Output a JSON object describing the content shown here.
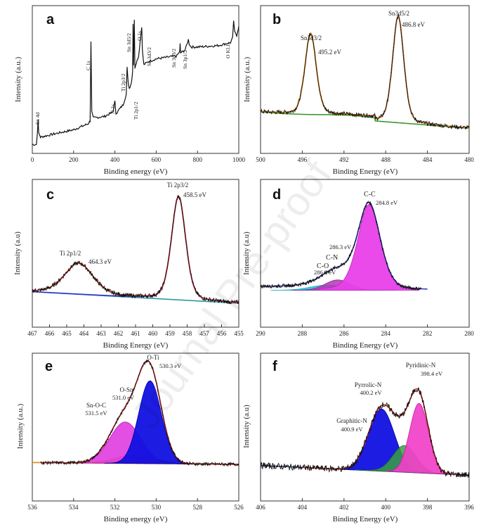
{
  "figure": {
    "watermark": "Journal Pre-proof"
  },
  "chart_data": [
    {
      "id": "a",
      "label": "a",
      "type": "line",
      "title": "",
      "xlabel": "Binding energy (eV)",
      "ylabel": "Intensity (a.u.)",
      "xlim": [
        0,
        1000
      ],
      "ylim": [
        0,
        100
      ],
      "xticks": [
        0,
        200,
        400,
        600,
        800,
        1000
      ],
      "xtick_labels": [
        "0",
        "200",
        "400",
        "600",
        "800",
        "1000"
      ],
      "series": [
        {
          "name": "Survey spectrum",
          "color": "#000000",
          "x": [
            0,
            20,
            25,
            28,
            31,
            40,
            100,
            200,
            270,
            280,
            284,
            288,
            295,
            350,
            390,
            400,
            405,
            440,
            455,
            459,
            464,
            470,
            480,
            486,
            488,
            490,
            494,
            497,
            500,
            515,
            530,
            533,
            540,
            560,
            580,
            600,
            650,
            700,
            714,
            716,
            718,
            740,
            756,
            760,
            770,
            800,
            900,
            960,
            970,
            975,
            980,
            990,
            1000
          ],
          "y": [
            6,
            6,
            15,
            22,
            14,
            11,
            13,
            16,
            20,
            22,
            76,
            28,
            24,
            25,
            28,
            35,
            27,
            33,
            40,
            58,
            48,
            44,
            48,
            56,
            88,
            60,
            90,
            58,
            60,
            66,
            86,
            70,
            60,
            62,
            63,
            64,
            65,
            66,
            69,
            74,
            68,
            70,
            77,
            74,
            72,
            72,
            73,
            75,
            78,
            90,
            82,
            80,
            86
          ]
        }
      ],
      "annotations": [
        "Sn 4d",
        "C 1s",
        "N 1s",
        "Ti 2p3/2",
        "Ti 2p1/2",
        "Sn 3d5/2",
        "Sn 3d3/2",
        "O 1s",
        "Sn 3p3/2",
        "Sn 3p1/2",
        "O KLL"
      ]
    },
    {
      "id": "b",
      "label": "b",
      "type": "line",
      "title": "",
      "xlabel": "Binding Energy (eV)",
      "ylabel": "Intensity (a.u.)",
      "xlim": [
        500,
        480
      ],
      "ylim": [
        0,
        100
      ],
      "xticks": [
        500,
        496,
        492,
        488,
        484,
        480
      ],
      "xtick_labels": [
        "500",
        "496",
        "492",
        "488",
        "484",
        "480"
      ],
      "peaks": [
        {
          "name": "Sn3d3/2",
          "position_ev": 495.2,
          "label": "495.2 eV",
          "color": "#808000"
        },
        {
          "name": "Sn3d5/2",
          "position_ev": 486.8,
          "label": "486.8 eV",
          "color": "#2b1b8a"
        }
      ],
      "series": [
        {
          "name": "Raw data",
          "color": "#000000",
          "role": "data"
        },
        {
          "name": "Envelope fit",
          "color": "#e07a10",
          "role": "envelope"
        },
        {
          "name": "Sn3d3/2 fit",
          "color": "#808000",
          "role": "component"
        },
        {
          "name": "Sn3d5/2 fit",
          "color": "#2b1b8a",
          "role": "component"
        },
        {
          "name": "Background",
          "color": "#3a9a2a",
          "role": "background"
        }
      ]
    },
    {
      "id": "c",
      "label": "c",
      "type": "line",
      "title": "",
      "xlabel": "Binding Energy (eV)",
      "ylabel": "Intensity (a.u)",
      "xlim": [
        467,
        455
      ],
      "ylim": [
        0,
        100
      ],
      "xticks": [
        467,
        466,
        465,
        464,
        463,
        462,
        461,
        460,
        459,
        458,
        457,
        456,
        455
      ],
      "xtick_labels": [
        "467",
        "466",
        "465",
        "464",
        "463",
        "462",
        "461",
        "460",
        "459",
        "458",
        "457",
        "456",
        "455"
      ],
      "peaks": [
        {
          "name": "Ti 2p1/2",
          "position_ev": 464.3,
          "label": "464.3 eV",
          "color": "#33bb33"
        },
        {
          "name": "Ti 2p3/2",
          "position_ev": 458.5,
          "label": "458.5 eV",
          "color": "#3333cc"
        }
      ],
      "series": [
        {
          "name": "Raw data",
          "color": "#000000",
          "role": "data"
        },
        {
          "name": "Envelope fit",
          "color": "#e02020",
          "role": "envelope"
        },
        {
          "name": "Ti 2p1/2 fit",
          "color": "#33bb33",
          "role": "component"
        },
        {
          "name": "Ti 2p3/2 fit",
          "color": "#3333cc",
          "role": "component"
        },
        {
          "name": "Background",
          "color": "#2a9aa0",
          "role": "background"
        }
      ]
    },
    {
      "id": "d",
      "label": "d",
      "type": "area",
      "title": "",
      "xlabel": "Binding Energy (eV)",
      "ylabel": "Intensity (a.u)",
      "xlim": [
        290,
        280
      ],
      "ylim": [
        0,
        100
      ],
      "xticks": [
        290,
        288,
        286,
        284,
        282,
        280
      ],
      "xtick_labels": [
        "290",
        "288",
        "286",
        "284",
        "282",
        "280"
      ],
      "peaks": [
        {
          "name": "C-O",
          "position_ev": 286.8,
          "label": "286.8 eV",
          "color": "#22c8e0"
        },
        {
          "name": "C-N",
          "position_ev": 286.3,
          "label": "286.3 eV",
          "color": "#b03ab0"
        },
        {
          "name": "C-C",
          "position_ev": 284.8,
          "label": "284.8 eV",
          "color": "#e840e8"
        }
      ],
      "series": [
        {
          "name": "Raw data",
          "color": "#000000",
          "role": "data"
        },
        {
          "name": "Envelope fit",
          "color": "#3a3ad0",
          "role": "envelope"
        },
        {
          "name": "C-O",
          "color": "#22c8e0",
          "role": "component"
        },
        {
          "name": "C-N",
          "color": "#b03ab0",
          "role": "component"
        },
        {
          "name": "C-C",
          "color": "#e840e8",
          "role": "component"
        }
      ]
    },
    {
      "id": "e",
      "label": "e",
      "type": "area",
      "title": "",
      "xlabel": "Binding energy (eV)",
      "ylabel": "Intensity (a.u.)",
      "xlim": [
        536,
        526
      ],
      "ylim": [
        0,
        100
      ],
      "xticks": [
        536,
        534,
        532,
        530,
        528,
        526
      ],
      "xtick_labels": [
        "536",
        "534",
        "532",
        "530",
        "528",
        "526"
      ],
      "peaks": [
        {
          "name": "Sn-O-C",
          "position_ev": 531.5,
          "label": "531.5 eV",
          "color": "#e040e0"
        },
        {
          "name": "O-Sn",
          "position_ev": 531.0,
          "label": "531.0 eV",
          "color": "#d6402a"
        },
        {
          "name": "O-Ti",
          "position_ev": 530.3,
          "label": "530.3 eV",
          "color": "#1010e0"
        }
      ],
      "series": [
        {
          "name": "Raw data",
          "color": "#000000",
          "role": "data"
        },
        {
          "name": "Envelope fit",
          "color": "#e02020",
          "role": "envelope"
        },
        {
          "name": "Sn-O-C",
          "color": "#e040e0",
          "role": "component"
        },
        {
          "name": "O-Sn",
          "color": "#d6402a",
          "role": "component"
        },
        {
          "name": "O-Ti",
          "color": "#1010e0",
          "role": "component"
        }
      ]
    },
    {
      "id": "f",
      "label": "f",
      "type": "area",
      "title": "",
      "xlabel": "Binding Energy (eV)",
      "ylabel": "Intensity (a.u)",
      "xlim": [
        406,
        396
      ],
      "ylim": [
        0,
        100
      ],
      "xticks": [
        406,
        404,
        402,
        400,
        398,
        396
      ],
      "xtick_labels": [
        "406",
        "404",
        "402",
        "400",
        "398",
        "396"
      ],
      "peaks": [
        {
          "name": "Graphitic-N",
          "position_ev": 400.9,
          "label": "400.9 eV",
          "color": "#1010e0"
        },
        {
          "name": "Pyrrolic-N",
          "position_ev": 400.2,
          "label": "400.2 eV",
          "color": "#3aa040"
        },
        {
          "name": "Pyridinic-N",
          "position_ev": 398.4,
          "label": "398.4 eV",
          "color": "#f040c8"
        }
      ],
      "series": [
        {
          "name": "Raw data",
          "color": "#000000",
          "role": "data"
        },
        {
          "name": "Envelope fit",
          "color": "#e02020",
          "role": "envelope"
        },
        {
          "name": "Graphitic-N",
          "color": "#1010e0",
          "role": "component"
        },
        {
          "name": "Pyrrolic-N",
          "color": "#3aa040",
          "role": "component"
        },
        {
          "name": "Pyridinic-N",
          "color": "#f040c8",
          "role": "component"
        }
      ]
    }
  ]
}
